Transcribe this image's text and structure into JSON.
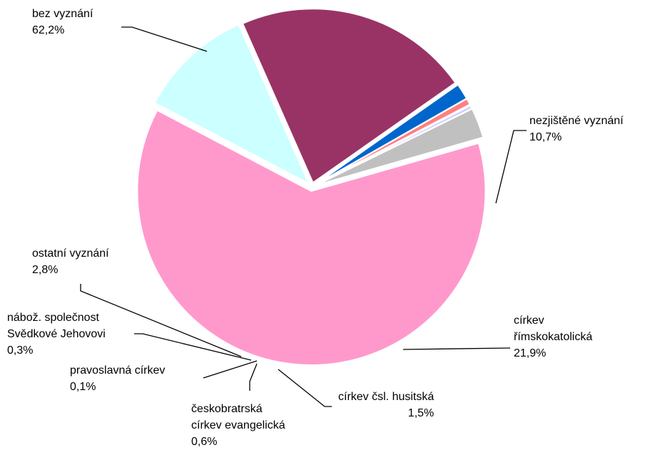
{
  "chart_data": {
    "type": "pie",
    "categories": [
      "bez vyznání",
      "nezjištěné vyznání",
      "církev\nřímskokatolická",
      "církev čsl. husitská",
      "českobratrská\ncírkev evangelická",
      "pravoslavná církev",
      "nábož. společnost\nSvědkové Jehovovi",
      "ostatní vyznání"
    ],
    "values": [
      62.2,
      10.7,
      21.9,
      1.5,
      0.6,
      0.1,
      0.3,
      2.8
    ],
    "value_labels": [
      "62,2%",
      "10,7%",
      "21,9%",
      "1,5%",
      "0,6%",
      "0,1%",
      "0,3%",
      "2,8%"
    ],
    "colors": [
      "#ff99cc",
      "#ccffff",
      "#993366",
      "#0066cc",
      "#ff8080",
      "#333399",
      "#ccccff",
      "#c0c0c0"
    ]
  }
}
